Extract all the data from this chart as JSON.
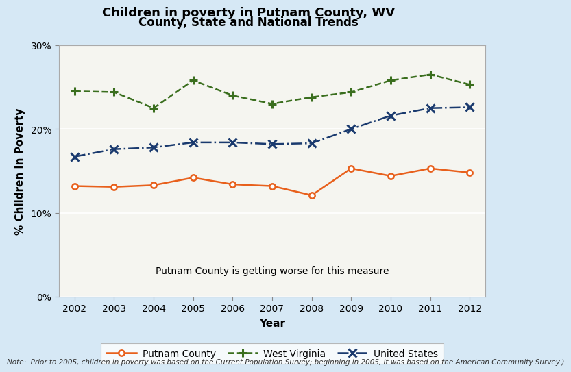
{
  "title_line1": "Children in poverty in Putnam County, WV",
  "title_line2": "County, State and National Trends",
  "xlabel": "Year",
  "ylabel": "% Children in Poverty",
  "annotation": "Putnam County is getting worse for this measure",
  "note": "Note:  Prior to 2005, children in poverty was based on the Current Population Survey; beginning in 2005, it was based on the American Community Survey.)",
  "years": [
    2002,
    2003,
    2004,
    2005,
    2006,
    2007,
    2008,
    2009,
    2010,
    2011,
    2012
  ],
  "putnam": [
    13.2,
    13.1,
    13.3,
    14.2,
    13.4,
    13.2,
    12.1,
    15.3,
    14.4,
    15.3,
    14.8
  ],
  "wv": [
    24.5,
    24.4,
    22.5,
    25.8,
    24.0,
    23.0,
    23.8,
    24.4,
    25.8,
    26.5,
    25.3
  ],
  "us": [
    16.7,
    17.6,
    17.8,
    18.4,
    18.4,
    18.2,
    18.3,
    20.0,
    21.6,
    22.5,
    22.6
  ],
  "putnam_color": "#e8601c",
  "wv_color": "#3a6e1e",
  "us_color": "#1a3a6e",
  "bg_color": "#d6e8f5",
  "plot_bg": "#f5f5f0",
  "ylim": [
    0,
    30
  ],
  "yticks": [
    0,
    10,
    20,
    30
  ],
  "title_fontsize": 13,
  "subtitle_fontsize": 12,
  "axis_label_fontsize": 11,
  "tick_fontsize": 10,
  "annotation_fontsize": 10,
  "note_fontsize": 7.5
}
